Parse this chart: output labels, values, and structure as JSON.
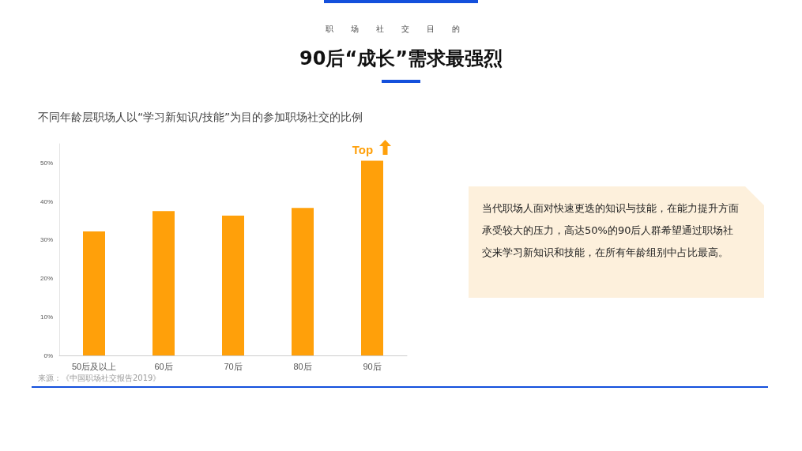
{
  "chart_data": {
    "type": "bar",
    "title": "90后“成长”需求最强烈",
    "subtitle": "职场社交目的",
    "categories": [
      "50后及以上",
      "60后",
      "70后",
      "80后",
      "90后"
    ],
    "values": [
      32.2,
      37.5,
      36.3,
      38.3,
      50.6
    ],
    "color": "#ffa00a",
    "ylim": [
      0,
      55
    ],
    "yticks": [
      {
        "value": 0,
        "label": "0%"
      },
      {
        "value": 10,
        "label": "10%"
      },
      {
        "value": 20,
        "label": "20%"
      },
      {
        "value": 30,
        "label": "30%"
      },
      {
        "value": 40,
        "label": "40%"
      },
      {
        "value": 50,
        "label": "50%"
      }
    ],
    "grid": false,
    "annotations": [
      "不同年龄层职场人以“学习新知识/技能”为目的参加职场社交的比例",
      {
        "text": "Top",
        "x": "90后",
        "y": 50.6
      },
      "当代职场人面对快速更迭的知识与技能，在能力提升方面承受较大的压力，高达50%的90后人群希望通过职场社交来学习新知识和技能，在所有年龄组别中占比最高。",
      "来源：《中国职场社交报告2019》"
    ]
  }
}
